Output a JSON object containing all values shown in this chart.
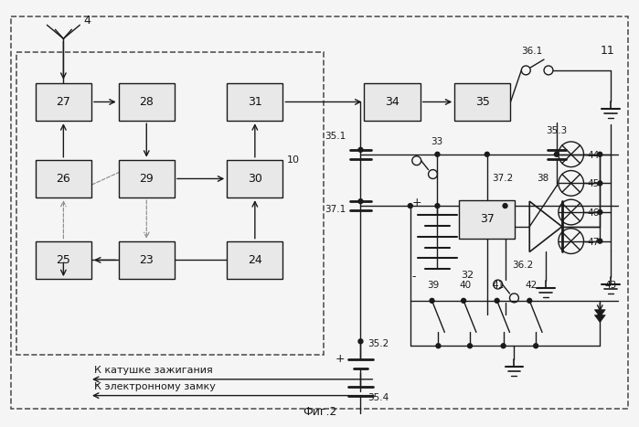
{
  "fig_label": "Фиг.2",
  "label4": "4",
  "label10": "10",
  "label11": "11",
  "text_katushka": "К катушке зажигания",
  "text_zamok": "К электронному замку",
  "bg_color": "#f5f5f5",
  "line_color": "#1a1a1a",
  "box_fill": "#e8e8e8"
}
